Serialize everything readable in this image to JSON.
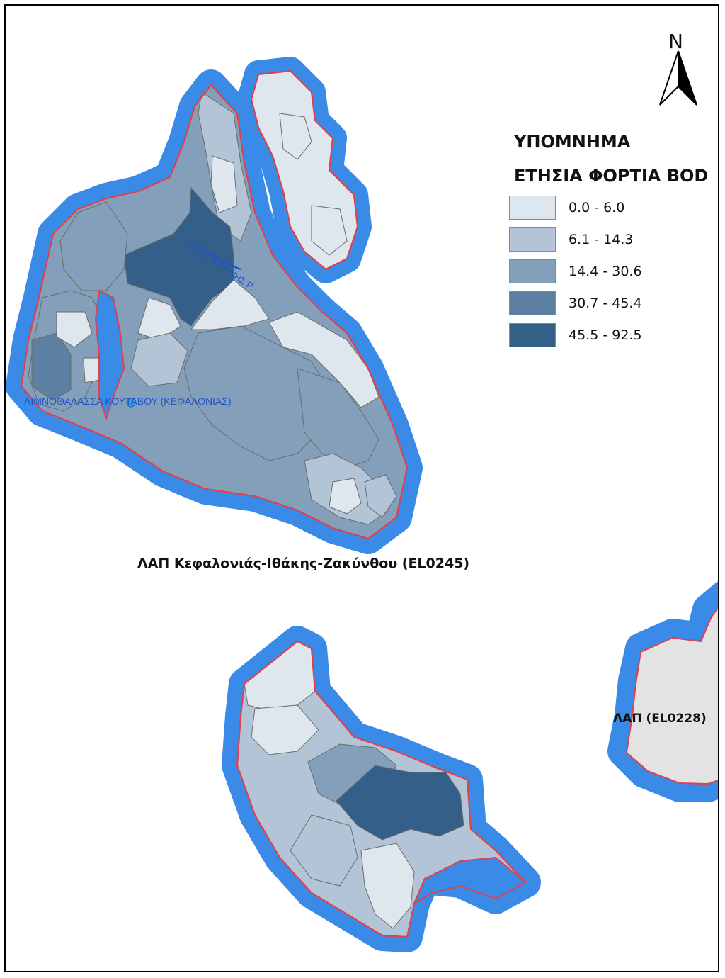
{
  "north_arrow": {
    "label": "N"
  },
  "legend": {
    "heading": "ΥΠΟΜΝΗΜΑ",
    "subheading": "ΕΤΗΣΙΑ ΦΟΡΤΙΑ BOD",
    "classes": [
      {
        "label": "0.0 - 6.0",
        "color": "#dfe7ee"
      },
      {
        "label": "6.1 - 14.3",
        "color": "#b3c4d6"
      },
      {
        "label": "14.4 - 30.6",
        "color": "#849fba"
      },
      {
        "label": "30.7 - 45.4",
        "color": "#5c7fa2"
      },
      {
        "label": "45.5 - 92.5",
        "color": "#335f88"
      }
    ]
  },
  "labels": {
    "district_main": "ΛΑΠ Κεφαλονιάς-Ιθάκης-Ζακύνθου (EL0245)",
    "district_other": "ΛΑΠ  (EL0228)",
    "lagoon": "ΛΙΜΝΟΘΑΛΑΣΣΑ ΚΟΥΤΑΒΟΥ (ΚΕΦΑΛΟΝΙΑΣ)",
    "river": "ΑΓΙΑΣ ΕΙΡΗΝΗΣ Ρ."
  },
  "colors": {
    "coastal_buffer": "#3a8be8",
    "district_boundary": "#e0404a",
    "basin_outline": "#6b6b6b",
    "neighbor_land": "#e3e3e3"
  }
}
